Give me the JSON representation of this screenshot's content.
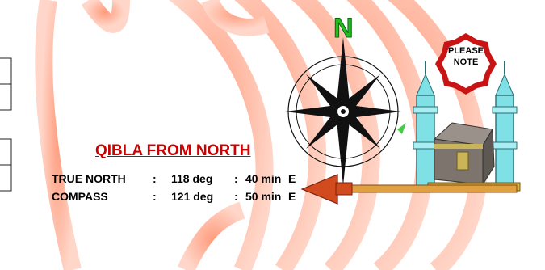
{
  "compass": {
    "north_label": "N"
  },
  "badge": {
    "line1": "PLEASE",
    "line2": "NOTE"
  },
  "qibla": {
    "title": "QIBLA FROM NORTH",
    "rows": [
      {
        "label": "TRUE NORTH",
        "sep": ":",
        "degrees": "118 deg",
        "sep2": ":",
        "minutes": "40 min",
        "direction": "E"
      },
      {
        "label": "COMPASS",
        "sep": ":",
        "degrees": "121 deg",
        "sep2": ":",
        "minutes": "50 min",
        "direction": "E"
      }
    ]
  },
  "colors": {
    "title": "#cc0000",
    "arcs": "#ff9a7a",
    "north": "#22bb22",
    "minaret": "#7fe0e6",
    "arrow": "#d24b1e"
  }
}
